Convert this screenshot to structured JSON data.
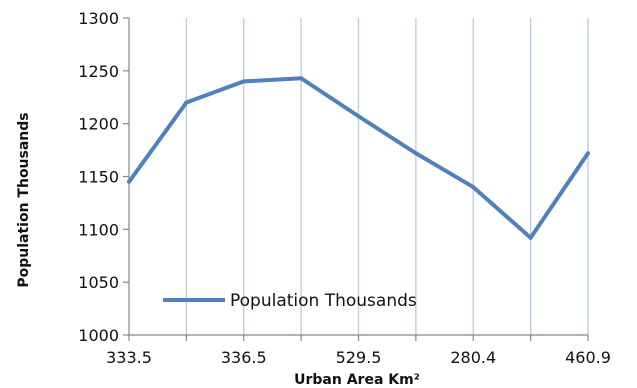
{
  "chart_data": {
    "type": "line",
    "xlabel": "Urban Area Km²",
    "ylabel": "Population Thousands",
    "ylim": [
      1000,
      1300
    ],
    "y_ticks": [
      1000,
      1050,
      1100,
      1150,
      1200,
      1250,
      1300
    ],
    "x_tick_labels": [
      "333.5",
      "336.5",
      "529.5",
      "280.4",
      "460.9"
    ],
    "grid": "vertical",
    "legend_position": "bottom-center",
    "series": [
      {
        "name": "Population Thousands",
        "color": "#4f81bd",
        "values": [
          1145,
          1220,
          1240,
          1243,
          1207,
          1172,
          1140,
          1092,
          1172
        ]
      }
    ]
  }
}
